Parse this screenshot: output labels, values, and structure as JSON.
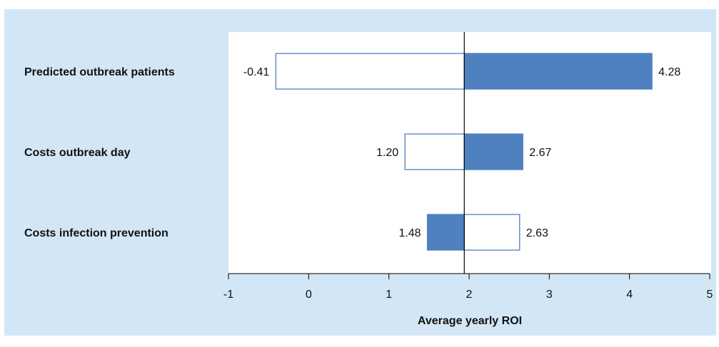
{
  "chart_data": {
    "type": "bar",
    "subtype": "tornado",
    "title": "",
    "xlabel": "Average yearly ROI",
    "ylabel": "",
    "xlim": [
      -1,
      5
    ],
    "xticks": [
      "-1",
      "0",
      "1",
      "2",
      "3",
      "4",
      "5"
    ],
    "base_value": 1.94,
    "grid": false,
    "legend": "none",
    "colors": {
      "filled": "#4f81c0",
      "outline": "#4f81c0",
      "empty": "#ffffff"
    },
    "categories": [
      {
        "label": "Predicted outbreak patients",
        "low_value": -0.41,
        "low_label": "-0.41",
        "low_style": "outline",
        "high_value": 4.28,
        "high_label": "4.28",
        "high_style": "filled"
      },
      {
        "label": "Costs outbreak day",
        "low_value": 1.2,
        "low_label": "1.20",
        "low_style": "outline",
        "high_value": 2.67,
        "high_label": "2.67",
        "high_style": "filled"
      },
      {
        "label": "Costs infection prevention",
        "low_value": 1.48,
        "low_label": "1.48",
        "low_style": "filled",
        "high_value": 2.63,
        "high_label": "2.63",
        "high_style": "outline"
      }
    ]
  }
}
